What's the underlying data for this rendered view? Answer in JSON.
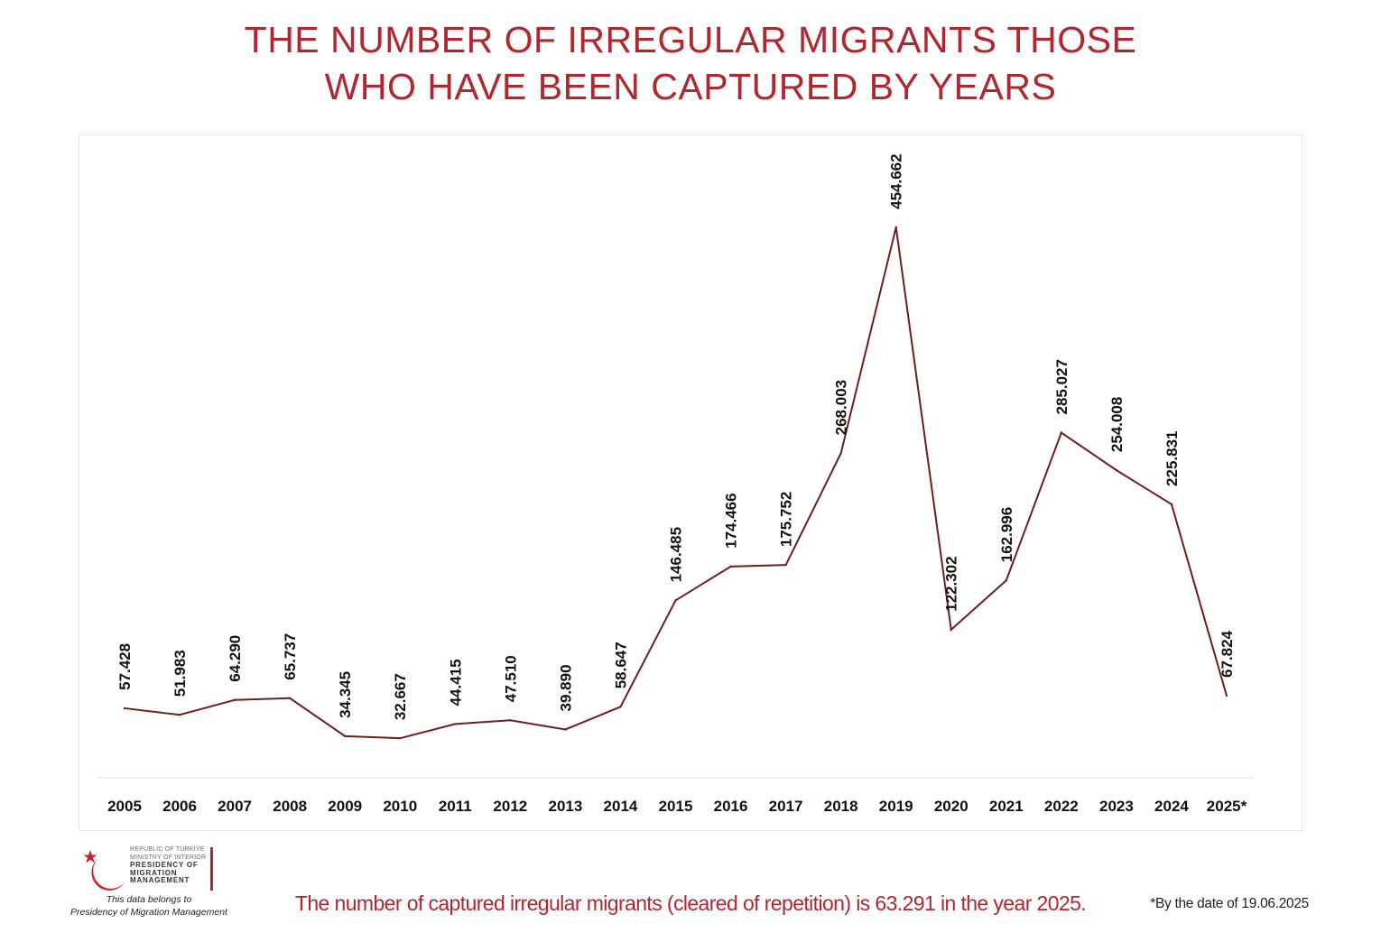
{
  "title": {
    "line1": "THE NUMBER OF IRREGULAR MIGRANTS THOSE",
    "line2": "WHO HAVE BEEN CAPTURED BY YEARS"
  },
  "chart_data": {
    "type": "line",
    "title": "THE NUMBER OF IRREGULAR MIGRANTS THOSE WHO HAVE BEEN CAPTURED BY YEARS",
    "xlabel": "",
    "ylabel": "",
    "categories": [
      "2005",
      "2006",
      "2007",
      "2008",
      "2009",
      "2010",
      "2011",
      "2012",
      "2013",
      "2014",
      "2015",
      "2016",
      "2017",
      "2018",
      "2019",
      "2020",
      "2021",
      "2022",
      "2023",
      "2024",
      "2025*"
    ],
    "series": [
      {
        "values": [
          57428,
          51983,
          64290,
          65737,
          34345,
          32667,
          44415,
          47510,
          39890,
          58647,
          146485,
          174466,
          175752,
          268003,
          454662,
          122302,
          162996,
          285027,
          254008,
          225831,
          67824
        ],
        "data_labels": [
          "57.428",
          "51.983",
          "64.290",
          "65.737",
          "34.345",
          "32.667",
          "44.415",
          "47.510",
          "39.890",
          "58.647",
          "146.485",
          "174.466",
          "175.752",
          "268.003",
          "454.662",
          "122.302",
          "162.996",
          "285.027",
          "254.008",
          "225.831",
          "67.824"
        ],
        "color": "#6b1f1f"
      }
    ],
    "ylim": [
      0,
      500000
    ],
    "grid": false,
    "legend": "none",
    "axis_line_color": "#e0e0e0",
    "tick_label_color": "#111111"
  },
  "logo": {
    "line1": "REPUBLIC OF TÜRKİYE",
    "line2": "MINISTRY OF INTERIOR",
    "line3": "PRESIDENCY OF",
    "line4": "MIGRATION MANAGEMENT",
    "icon": "crescent-star-icon",
    "color": "#d0202b"
  },
  "credit": {
    "line1": "This data belongs to",
    "line2": "Presidency of Migration Management"
  },
  "note": "The number of captured irregular migrants (cleared of repetition) is 63.291 in the year 2025.",
  "footnote": "*By the date of 19.06.2025",
  "colors": {
    "accent": "#b0272f",
    "line": "#6b1f1f"
  }
}
